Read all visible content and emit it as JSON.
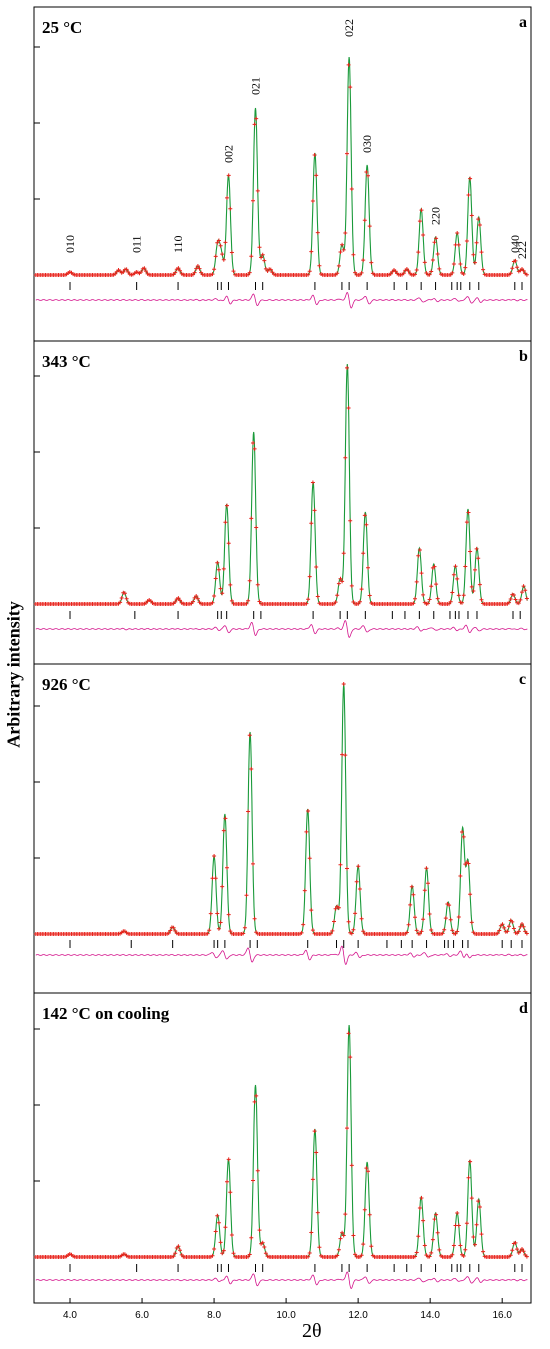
{
  "figure": {
    "ylabel": "Arbitrary intensity",
    "xlabel": "2θ",
    "x_ticks": [
      "4.0",
      "6.0",
      "8.0",
      "10.0",
      "12.0",
      "14.0",
      "16.0"
    ],
    "colors": {
      "observed": "#e8231c",
      "calculated": "#1a9a3a",
      "difference": "#d4148c",
      "ticks": "#000000"
    }
  },
  "chart_data": [
    {
      "type": "line",
      "panel": "a",
      "title": "25 °C",
      "series": [
        {
          "name": "observed"
        },
        {
          "name": "calculated"
        },
        {
          "name": "difference"
        }
      ],
      "xlim": [
        3.0,
        16.8
      ],
      "peaks": [
        {
          "x": 4.0,
          "h": 3
        },
        {
          "x": 5.35,
          "h": 5
        },
        {
          "x": 5.55,
          "h": 6
        },
        {
          "x": 5.85,
          "h": 3
        },
        {
          "x": 6.05,
          "h": 7
        },
        {
          "x": 7.0,
          "h": 7
        },
        {
          "x": 7.55,
          "h": 9
        },
        {
          "x": 8.1,
          "h": 30
        },
        {
          "x": 8.2,
          "h": 20
        },
        {
          "x": 8.4,
          "h": 100
        },
        {
          "x": 9.15,
          "h": 167
        },
        {
          "x": 9.35,
          "h": 20
        },
        {
          "x": 9.55,
          "h": 6
        },
        {
          "x": 10.8,
          "h": 122
        },
        {
          "x": 11.55,
          "h": 30
        },
        {
          "x": 11.75,
          "h": 218
        },
        {
          "x": 12.25,
          "h": 110
        },
        {
          "x": 13.0,
          "h": 5
        },
        {
          "x": 13.35,
          "h": 6
        },
        {
          "x": 13.75,
          "h": 66
        },
        {
          "x": 14.15,
          "h": 38
        },
        {
          "x": 14.75,
          "h": 42
        },
        {
          "x": 15.1,
          "h": 98
        },
        {
          "x": 15.35,
          "h": 58
        },
        {
          "x": 16.35,
          "h": 15
        },
        {
          "x": 16.55,
          "h": 6
        }
      ],
      "reflection_ticks": [
        4.0,
        5.85,
        7.0,
        8.1,
        8.2,
        8.4,
        9.15,
        9.35,
        10.8,
        11.55,
        11.75,
        12.25,
        13.0,
        13.35,
        13.75,
        14.15,
        14.6,
        14.75,
        14.85,
        15.1,
        15.35,
        16.35,
        16.55
      ],
      "annotations": [
        {
          "label": "010",
          "x": 4.0,
          "h": 22
        },
        {
          "label": "011",
          "x": 5.85,
          "h": 22
        },
        {
          "label": "110",
          "x": 7.0,
          "h": 22
        },
        {
          "label": "002",
          "x": 8.4,
          "h": 112
        },
        {
          "label": "021",
          "x": 9.15,
          "h": 180
        },
        {
          "label": "022",
          "x": 11.75,
          "h": 238
        },
        {
          "label": "030",
          "x": 12.25,
          "h": 122
        },
        {
          "label": "220",
          "x": 14.15,
          "h": 50
        },
        {
          "label": "040",
          "x": 16.35,
          "h": 22
        },
        {
          "label": "222",
          "x": 16.55,
          "h": 16
        }
      ]
    },
    {
      "type": "line",
      "panel": "b",
      "title": "343 °C",
      "series": [
        {
          "name": "observed"
        },
        {
          "name": "calculated"
        },
        {
          "name": "difference"
        }
      ],
      "xlim": [
        3.0,
        16.8
      ],
      "peaks": [
        {
          "x": 5.5,
          "h": 12
        },
        {
          "x": 6.2,
          "h": 4
        },
        {
          "x": 7.0,
          "h": 6
        },
        {
          "x": 7.5,
          "h": 8
        },
        {
          "x": 8.1,
          "h": 42
        },
        {
          "x": 8.35,
          "h": 100
        },
        {
          "x": 9.1,
          "h": 172
        },
        {
          "x": 10.75,
          "h": 122
        },
        {
          "x": 11.5,
          "h": 25
        },
        {
          "x": 11.7,
          "h": 240
        },
        {
          "x": 12.2,
          "h": 92
        },
        {
          "x": 13.7,
          "h": 56
        },
        {
          "x": 14.1,
          "h": 40
        },
        {
          "x": 14.7,
          "h": 38
        },
        {
          "x": 15.05,
          "h": 95
        },
        {
          "x": 15.3,
          "h": 56
        },
        {
          "x": 16.3,
          "h": 10
        },
        {
          "x": 16.6,
          "h": 18
        }
      ],
      "reflection_ticks": [
        4.0,
        5.8,
        7.0,
        8.1,
        8.2,
        8.35,
        9.1,
        9.3,
        10.75,
        11.5,
        11.7,
        12.2,
        12.95,
        13.3,
        13.7,
        14.1,
        14.55,
        14.7,
        14.8,
        15.05,
        15.3,
        16.3,
        16.5
      ],
      "annotations": []
    },
    {
      "type": "line",
      "panel": "c",
      "title": "926 °C",
      "series": [
        {
          "name": "observed"
        },
        {
          "name": "calculated"
        },
        {
          "name": "difference"
        }
      ],
      "xlim": [
        3.0,
        16.8
      ],
      "peaks": [
        {
          "x": 5.5,
          "h": 3
        },
        {
          "x": 6.85,
          "h": 7
        },
        {
          "x": 8.0,
          "h": 78
        },
        {
          "x": 8.3,
          "h": 120
        },
        {
          "x": 9.0,
          "h": 202
        },
        {
          "x": 10.6,
          "h": 125
        },
        {
          "x": 11.4,
          "h": 28
        },
        {
          "x": 11.6,
          "h": 250
        },
        {
          "x": 12.0,
          "h": 68
        },
        {
          "x": 13.5,
          "h": 48
        },
        {
          "x": 13.9,
          "h": 66
        },
        {
          "x": 14.5,
          "h": 32
        },
        {
          "x": 14.9,
          "h": 105
        },
        {
          "x": 15.05,
          "h": 72
        },
        {
          "x": 16.0,
          "h": 10
        },
        {
          "x": 16.25,
          "h": 14
        },
        {
          "x": 16.55,
          "h": 10
        }
      ],
      "reflection_ticks": [
        4.0,
        5.7,
        6.85,
        8.0,
        8.1,
        8.3,
        9.0,
        9.2,
        10.6,
        11.4,
        11.6,
        12.0,
        12.8,
        13.2,
        13.5,
        13.9,
        14.4,
        14.5,
        14.65,
        14.9,
        15.05,
        16.0,
        16.25,
        16.55
      ],
      "annotations": []
    },
    {
      "type": "line",
      "panel": "d",
      "title": "142 °C on cooling",
      "series": [
        {
          "name": "observed"
        },
        {
          "name": "calculated"
        },
        {
          "name": "difference"
        }
      ],
      "xlim": [
        3.0,
        16.8
      ],
      "peaks": [
        {
          "x": 4.0,
          "h": 3
        },
        {
          "x": 5.5,
          "h": 3
        },
        {
          "x": 7.0,
          "h": 11
        },
        {
          "x": 8.1,
          "h": 42
        },
        {
          "x": 8.4,
          "h": 98
        },
        {
          "x": 9.15,
          "h": 172
        },
        {
          "x": 9.35,
          "h": 14
        },
        {
          "x": 10.8,
          "h": 128
        },
        {
          "x": 11.55,
          "h": 24
        },
        {
          "x": 11.75,
          "h": 232
        },
        {
          "x": 12.25,
          "h": 95
        },
        {
          "x": 13.75,
          "h": 60
        },
        {
          "x": 14.15,
          "h": 44
        },
        {
          "x": 14.75,
          "h": 44
        },
        {
          "x": 15.1,
          "h": 97
        },
        {
          "x": 15.35,
          "h": 58
        },
        {
          "x": 16.35,
          "h": 15
        },
        {
          "x": 16.55,
          "h": 8
        }
      ],
      "reflection_ticks": [
        4.0,
        5.85,
        7.0,
        8.1,
        8.2,
        8.4,
        9.15,
        9.35,
        10.8,
        11.55,
        11.75,
        12.25,
        13.0,
        13.35,
        13.75,
        14.15,
        14.6,
        14.75,
        14.85,
        15.1,
        15.35,
        16.35,
        16.55
      ],
      "annotations": []
    }
  ]
}
